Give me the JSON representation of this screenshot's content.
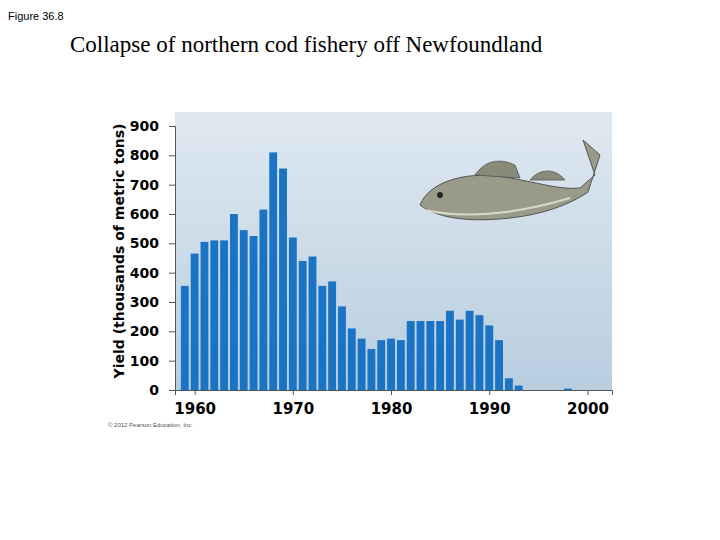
{
  "chart_data": {
    "type": "bar",
    "title": "Collapse of northern cod fishery off Newfoundland",
    "y_label": "Yield (thousands of metric tons)",
    "annotations": [
      "Figure 36.8",
      "© 2012 Pearson Education, Inc."
    ],
    "x": [
      1959,
      1960,
      1961,
      1962,
      1963,
      1964,
      1965,
      1966,
      1967,
      1968,
      1969,
      1970,
      1971,
      1972,
      1973,
      1974,
      1975,
      1976,
      1977,
      1978,
      1979,
      1980,
      1981,
      1982,
      1983,
      1984,
      1985,
      1986,
      1987,
      1988,
      1989,
      1990,
      1991,
      1992,
      1993,
      1998
    ],
    "values": [
      355,
      465,
      505,
      510,
      510,
      600,
      545,
      525,
      615,
      810,
      755,
      520,
      440,
      455,
      355,
      370,
      285,
      210,
      175,
      140,
      170,
      175,
      170,
      235,
      235,
      235,
      235,
      270,
      240,
      270,
      255,
      220,
      170,
      40,
      15,
      5
    ],
    "color": "#1a73c4",
    "xlim": [
      1958,
      2002.5
    ],
    "xticks": [
      1960,
      1970,
      1980,
      1990,
      2000
    ],
    "ylim": [
      0,
      900
    ],
    "yticks": [
      0,
      100,
      200,
      300,
      400,
      500,
      600,
      700,
      800,
      900
    ],
    "grid": false
  }
}
